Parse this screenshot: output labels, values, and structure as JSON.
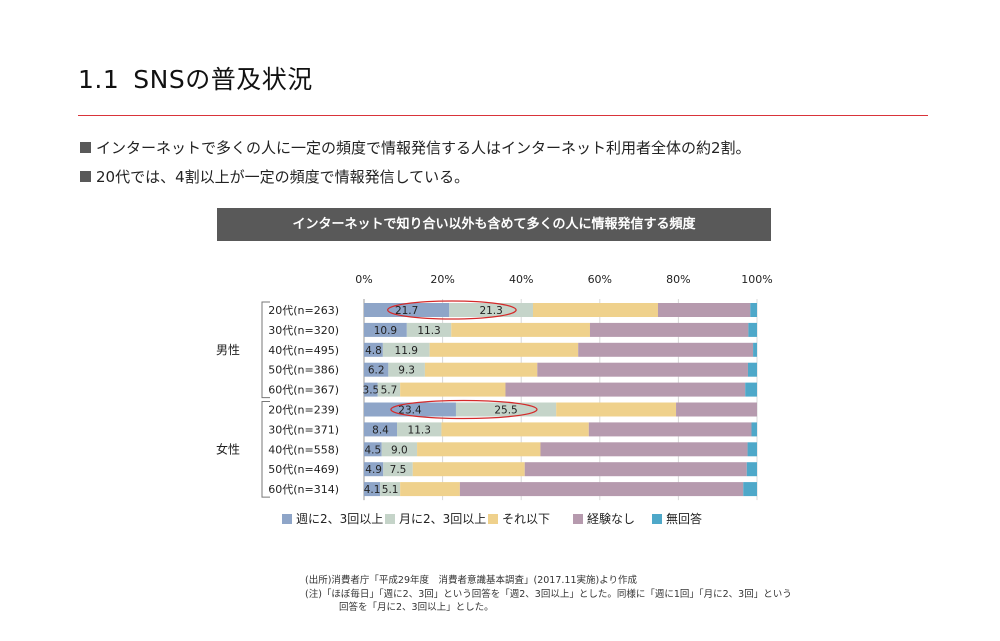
{
  "header": {
    "number": "1.1",
    "title": "SNSの普及状況"
  },
  "bullets": [
    "インターネットで多くの人に一定の頻度で情報発信する人はインターネット利用者全体の約2割。",
    "20代では、4割以上が一定の頻度で情報発信している。"
  ],
  "chart_title": "インターネットで知り合い以外も含めて多くの人に情報発信する頻度",
  "source_lines": [
    "(出所)消費者庁「平成29年度　消費者意識基本調査」(2017.11実施)より作成",
    "(注)「ほぼ毎日」「週に2、3回」という回答を「週2、3回以上」とした。同様に「週に1回」「月に2、3回」という",
    "回答を「月に2、3回以上」とした。"
  ],
  "chart_data": {
    "type": "bar",
    "orientation": "horizontal-stacked-100",
    "xlim": [
      0,
      100
    ],
    "xticks": [
      "0%",
      "20%",
      "40%",
      "60%",
      "80%",
      "100%"
    ],
    "groups": [
      {
        "name": "男性",
        "rows": [
          "20代(n=263)",
          "30代(n=320)",
          "40代(n=495)",
          "50代(n=386)",
          "60代(n=367)"
        ]
      },
      {
        "name": "女性",
        "rows": [
          "20代(n=239)",
          "30代(n=371)",
          "40代(n=558)",
          "50代(n=469)",
          "60代(n=314)"
        ]
      }
    ],
    "categories": [
      "20代(n=263)",
      "30代(n=320)",
      "40代(n=495)",
      "50代(n=386)",
      "60代(n=367)",
      "20代(n=239)",
      "30代(n=371)",
      "40代(n=558)",
      "50代(n=469)",
      "60代(n=314)"
    ],
    "series": [
      {
        "name": "週に2、3回以上",
        "color": "#8ea5c8",
        "values": [
          21.7,
          10.9,
          4.8,
          6.2,
          3.5,
          23.4,
          8.4,
          4.5,
          4.9,
          4.1
        ],
        "labels": [
          "21.7",
          "10.9",
          "4.8",
          "6.2",
          "3.5",
          "23.4",
          "8.4",
          "4.5",
          "4.9",
          "4.1"
        ]
      },
      {
        "name": "月に2、3回以上",
        "color": "#c5d4c9",
        "values": [
          21.3,
          11.3,
          11.9,
          9.3,
          5.7,
          25.5,
          11.3,
          9.0,
          7.5,
          5.1
        ],
        "labels": [
          "21.3",
          "11.3",
          "11.9",
          "9.3",
          "5.7",
          "25.5",
          "11.3",
          "9.0",
          "7.5",
          "5.1"
        ]
      },
      {
        "name": "それ以下",
        "color": "#efd18c",
        "values": [
          31.8,
          35.3,
          37.8,
          28.6,
          26.8,
          30.5,
          37.5,
          31.4,
          28.5,
          15.2
        ],
        "labels": []
      },
      {
        "name": "経験なし",
        "color": "#b69aae",
        "values": [
          23.5,
          40.3,
          44.5,
          53.6,
          61.0,
          20.6,
          41.4,
          52.7,
          56.5,
          72.1
        ],
        "labels": []
      },
      {
        "name": "無回答",
        "color": "#4ea8c9",
        "values": [
          1.7,
          2.2,
          1.0,
          2.3,
          3.0,
          0.0,
          1.4,
          2.4,
          2.6,
          3.5
        ],
        "labels": []
      }
    ],
    "highlight_ellipses": [
      0,
      5
    ],
    "highlight_color": "#d42a2a",
    "grid": true,
    "legend_position": "bottom"
  }
}
